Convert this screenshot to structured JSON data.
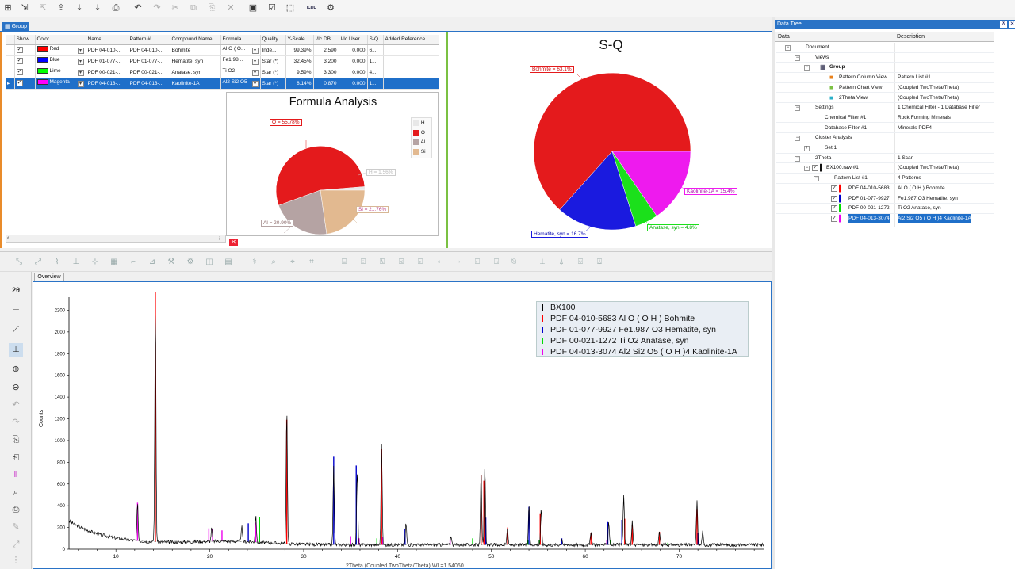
{
  "toolbar": {
    "icons": [
      "new-icon",
      "import-icon",
      "export-icon",
      "upload-icon",
      "download-icon",
      "save-as-icon",
      "print-icon",
      "undo-icon",
      "redo-icon",
      "cut-icon",
      "copy-icon",
      "paste-icon",
      "delete-icon",
      "view-icon",
      "check-icon",
      "select-icon",
      "icdd-icon",
      "settings-icon"
    ],
    "icdd_label": "ICDD"
  },
  "tabs": {
    "group": "Group",
    "data_tree": "Data Tree",
    "overview": "Overview"
  },
  "pattern_table": {
    "columns": [
      "Show",
      "Color",
      "Name",
      "Pattern #",
      "Compound Name",
      "Formula",
      "Quality",
      "Y-Scale",
      "I/Ic DB",
      "I/Ic User",
      "S-Q",
      "Added Reference"
    ],
    "rows": [
      {
        "color_name": "Red",
        "color": "#ff0000",
        "name": "PDF 04-010-...",
        "pattern": "PDF 04-010-...",
        "compound": "Bohmite",
        "formula": "Al O ( O...",
        "quality": "Inde...",
        "yscale": "99.39%",
        "iic_db": "2.590",
        "iic_user": "0.000",
        "sq": "6..."
      },
      {
        "color_name": "Blue",
        "color": "#0000ff",
        "name": "PDF 01-077-...",
        "pattern": "PDF 01-077-...",
        "compound": "Hematite, syn",
        "formula": "Fe1.98...",
        "quality": "Star (*)",
        "yscale": "32.45%",
        "iic_db": "3.200",
        "iic_user": "0.000",
        "sq": "1..."
      },
      {
        "color_name": "Lime",
        "color": "#00ff00",
        "name": "PDF 00-021-...",
        "pattern": "PDF 00-021-...",
        "compound": "Anatase, syn",
        "formula": "Ti O2",
        "quality": "Star (*)",
        "yscale": "9.59%",
        "iic_db": "3.300",
        "iic_user": "0.000",
        "sq": "4..."
      },
      {
        "color_name": "Magenta",
        "color": "#ff00ff",
        "name": "PDF 04-013-...",
        "pattern": "PDF 04-013-...",
        "compound": "Kaolinite-1A",
        "formula": "Al2 Si2 O5",
        "quality": "Star (*)",
        "yscale": "8.14%",
        "iic_db": "0.870",
        "iic_user": "0.000",
        "sq": "1..."
      }
    ]
  },
  "formula_chart": {
    "title": "Formula Analysis",
    "legend": [
      "H",
      "O",
      "Al",
      "Si"
    ],
    "labels": {
      "O": "O = 55.78%",
      "H": "H = 1.56%",
      "Al": "Al = 20.90%",
      "Si": "Si = 21.76%"
    }
  },
  "sq_chart": {
    "title": "S-Q",
    "labels": {
      "bohmite": "Bohmite = 63.1%",
      "kaolinite": "Kaolinite-1A = 15.4%",
      "anatase": "Anatase, syn = 4.8%",
      "hematite": "Hematite, syn = 16.7%"
    }
  },
  "xrd": {
    "ylabel": "Counts",
    "xlabel": "2Theta (Coupled TwoTheta/Theta) WL=1.54060",
    "yticks": [
      "2200",
      "2000",
      "1800",
      "1600",
      "1400",
      "1200",
      "1000",
      "800",
      "600",
      "400",
      "200",
      "0"
    ],
    "xticks": [
      "10",
      "20",
      "30",
      "40",
      "50",
      "60",
      "70"
    ],
    "legend": [
      {
        "label": "BX100",
        "color": "#000000"
      },
      {
        "label": "PDF 04-010-5683 Al O ( O H ) Bohmite",
        "color": "#ff0000"
      },
      {
        "label": "PDF 01-077-9927 Fe1.987 O3 Hematite, syn",
        "color": "#0000cc"
      },
      {
        "label": "PDF 00-021-1272 Ti O2 Anatase, syn",
        "color": "#00dd00"
      },
      {
        "label": "PDF 04-013-3074 Al2 Si2 O5 ( O H )4 Kaolinite-1A",
        "color": "#ee00ee"
      }
    ]
  },
  "data_tree": {
    "headers": {
      "data": "Data",
      "description": "Description"
    },
    "rows": [
      {
        "name": "Document",
        "desc": ""
      },
      {
        "name": "Views",
        "desc": ""
      },
      {
        "name": "Group",
        "desc": ""
      },
      {
        "name": "Pattern Column View",
        "desc": "Pattern List #1"
      },
      {
        "name": "Pattern Chart View",
        "desc": "(Coupled TwoTheta/Theta)"
      },
      {
        "name": "2Theta View",
        "desc": "(Coupled TwoTheta/Theta)"
      },
      {
        "name": "Settings",
        "desc": "1 Chemical Filter - 1 Database Filter"
      },
      {
        "name": "Chemical Filter #1",
        "desc": "Rock Forming Minerals"
      },
      {
        "name": "Database Filter #1",
        "desc": "Minerals PDF4"
      },
      {
        "name": "Cluster Analysis",
        "desc": ""
      },
      {
        "name": "Set 1",
        "desc": ""
      },
      {
        "name": "2Theta",
        "desc": "1 Scan"
      },
      {
        "name": "BX100.raw #1",
        "desc": "(Coupled TwoTheta/Theta)"
      },
      {
        "name": "Pattern List #1",
        "desc": "4 Patterns"
      },
      {
        "name": "PDF 04-010-5683",
        "desc": "Al O ( O H ) Bohmite"
      },
      {
        "name": "PDF 01-077-9927",
        "desc": "Fe1.987 O3 Hematite, syn"
      },
      {
        "name": "PDF 00-021-1272",
        "desc": "Ti O2 Anatase, syn"
      },
      {
        "name": "PDF 04-013-3074",
        "desc": "Al2 Si2 O5 ( O H )4 Kaolinite-1A"
      }
    ]
  }
}
